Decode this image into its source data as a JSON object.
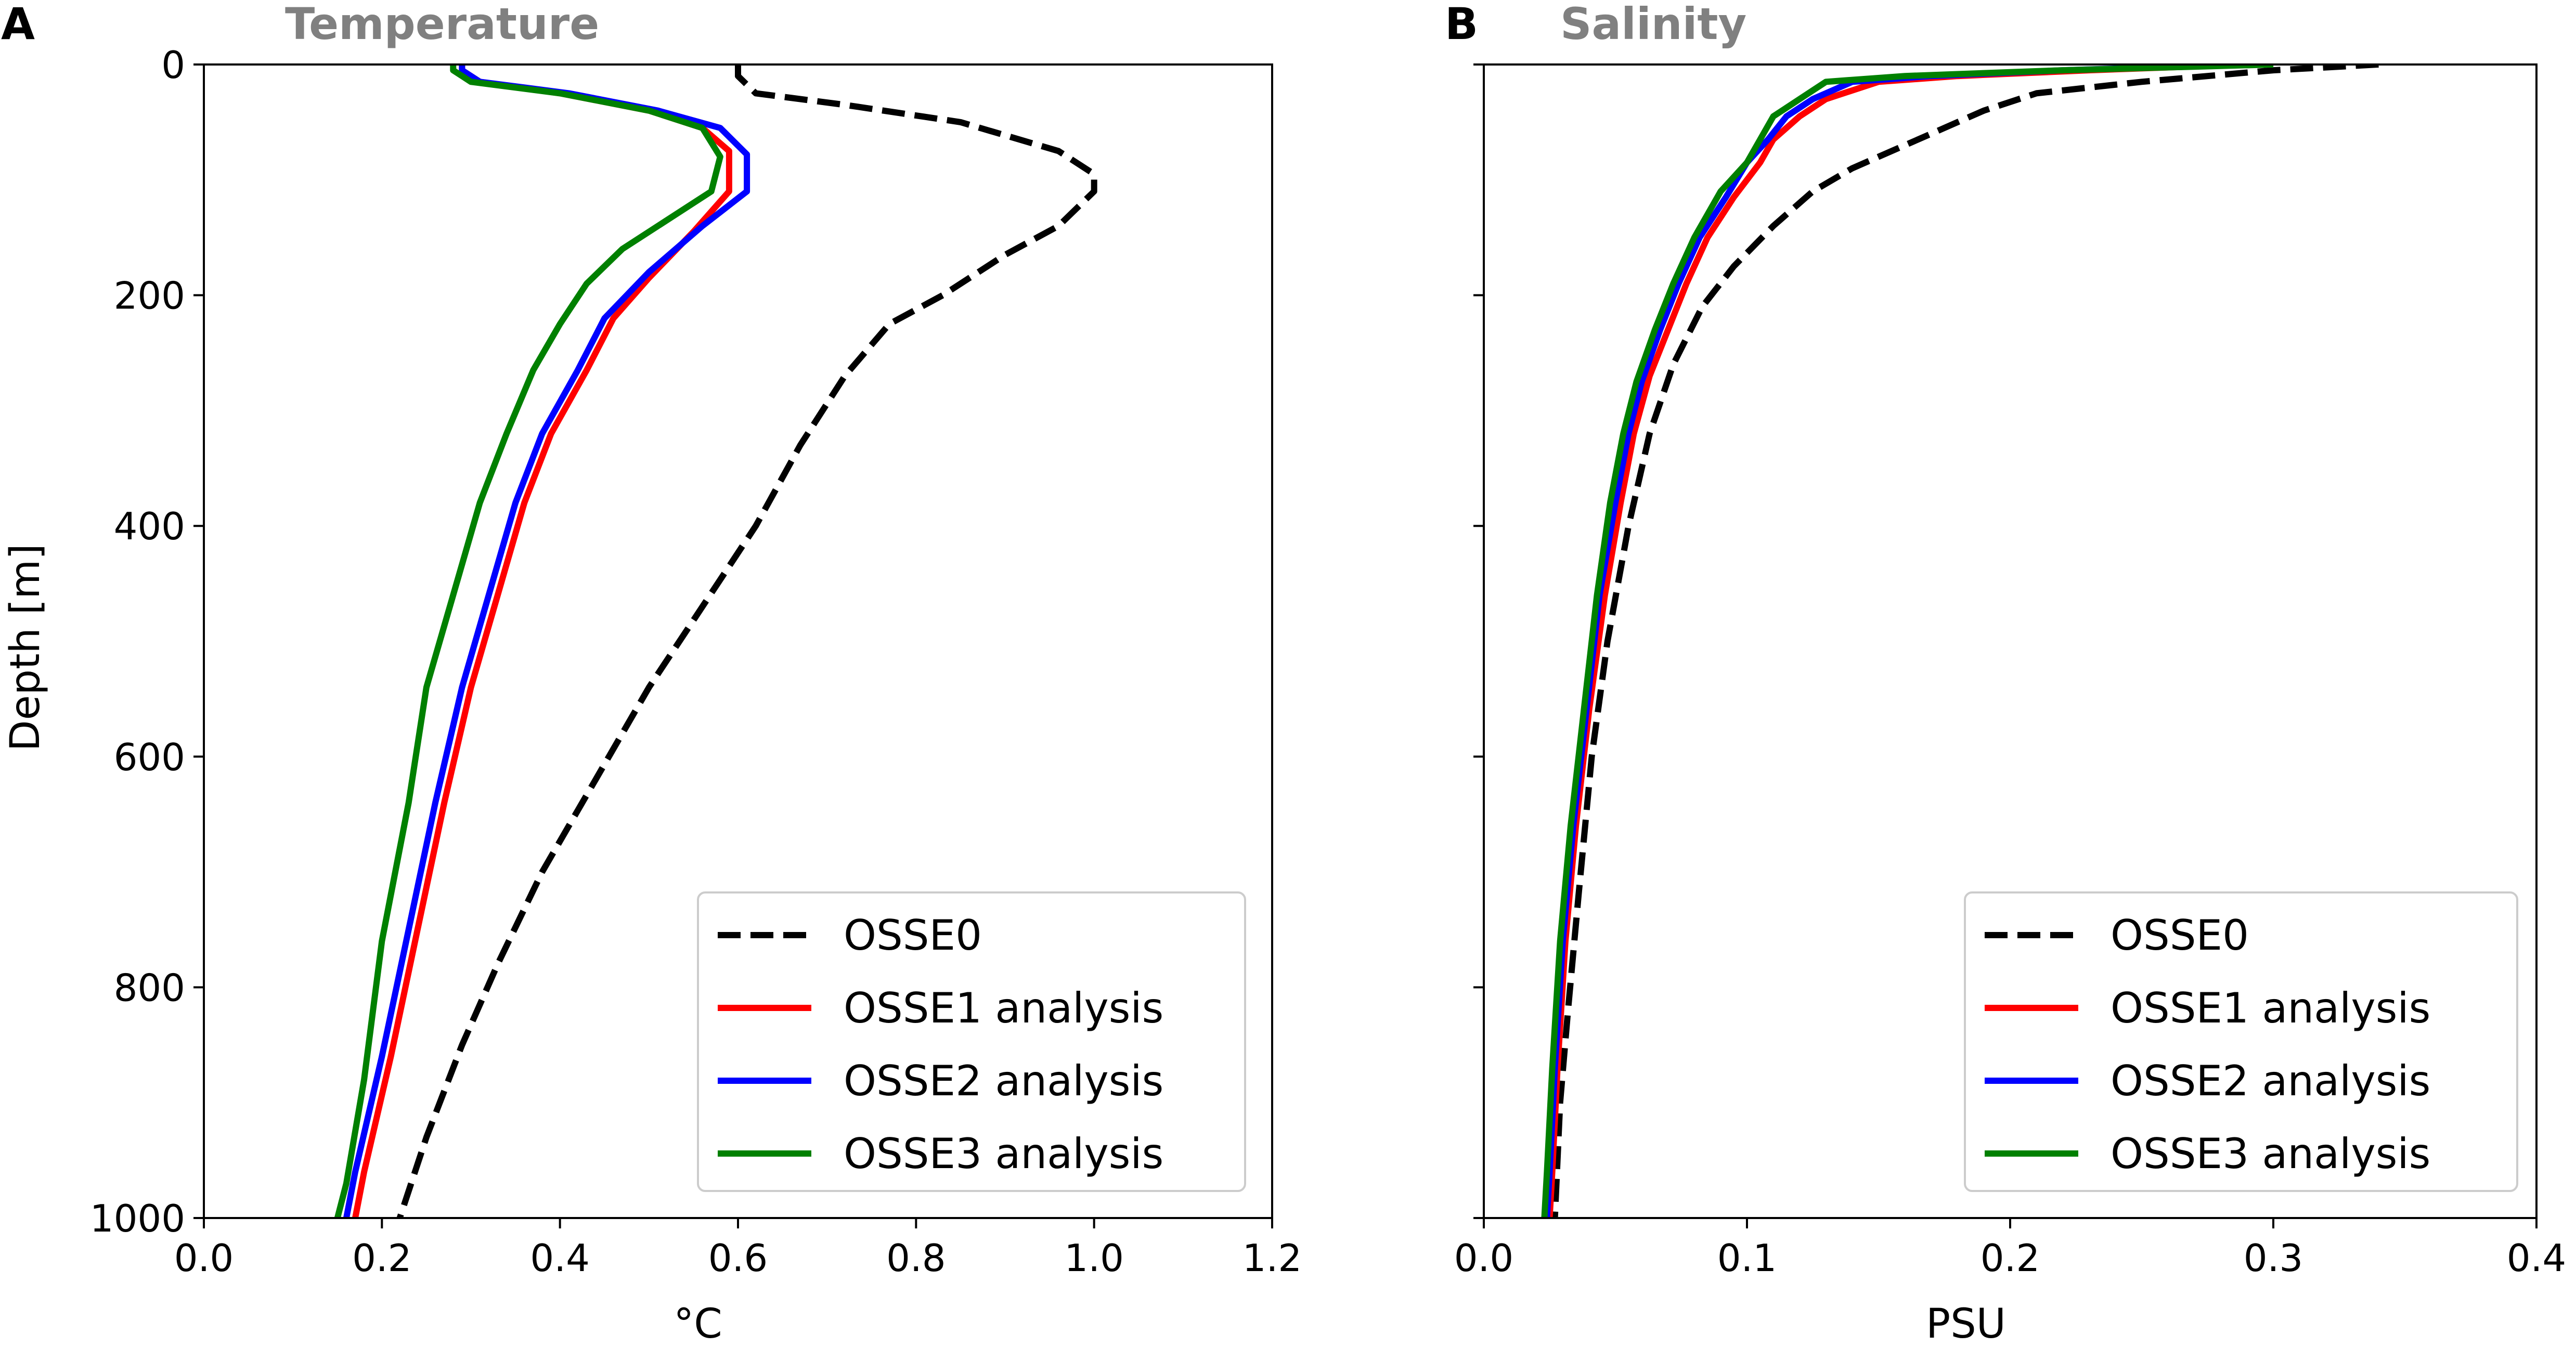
{
  "chart_data": [
    {
      "type": "line",
      "panel_label": "A",
      "title": "Temperature",
      "xlabel": "°C",
      "ylabel": "Depth [m]",
      "xlim": [
        0,
        1.2
      ],
      "ylim": [
        0,
        1000
      ],
      "y_inverted": true,
      "xticks": [
        "0.0",
        "0.2",
        "0.4",
        "0.6",
        "0.8",
        "1.0",
        "1.2"
      ],
      "yticks": [
        "0",
        "200",
        "400",
        "600",
        "800",
        "1000"
      ],
      "grid": false,
      "legend_position": "lower-right",
      "series": [
        {
          "name": "OSSE0",
          "color": "#000000",
          "dash": true,
          "points": [
            [
              0.6,
              0
            ],
            [
              0.6,
              10
            ],
            [
              0.62,
              25
            ],
            [
              0.72,
              35
            ],
            [
              0.85,
              50
            ],
            [
              0.96,
              75
            ],
            [
              1.0,
              95
            ],
            [
              1.0,
              110
            ],
            [
              0.96,
              140
            ],
            [
              0.9,
              165
            ],
            [
              0.83,
              200
            ],
            [
              0.77,
              225
            ],
            [
              0.72,
              270
            ],
            [
              0.67,
              330
            ],
            [
              0.62,
              400
            ],
            [
              0.56,
              470
            ],
            [
              0.5,
              540
            ],
            [
              0.44,
              620
            ],
            [
              0.38,
              700
            ],
            [
              0.33,
              780
            ],
            [
              0.29,
              850
            ],
            [
              0.25,
              930
            ],
            [
              0.22,
              1000
            ]
          ]
        },
        {
          "name": "OSSE1 analysis",
          "color": "#ff0000",
          "dash": false,
          "points": [
            [
              0.29,
              0
            ],
            [
              0.29,
              5
            ],
            [
              0.31,
              15
            ],
            [
              0.4,
              25
            ],
            [
              0.5,
              40
            ],
            [
              0.56,
              55
            ],
            [
              0.59,
              75
            ],
            [
              0.59,
              110
            ],
            [
              0.55,
              145
            ],
            [
              0.5,
              185
            ],
            [
              0.46,
              220
            ],
            [
              0.43,
              265
            ],
            [
              0.39,
              320
            ],
            [
              0.36,
              380
            ],
            [
              0.33,
              460
            ],
            [
              0.3,
              540
            ],
            [
              0.27,
              640
            ],
            [
              0.24,
              750
            ],
            [
              0.21,
              860
            ],
            [
              0.18,
              960
            ],
            [
              0.17,
              1000
            ]
          ]
        },
        {
          "name": "OSSE2 analysis",
          "color": "#0000ff",
          "dash": false,
          "points": [
            [
              0.29,
              0
            ],
            [
              0.29,
              5
            ],
            [
              0.31,
              15
            ],
            [
              0.41,
              25
            ],
            [
              0.51,
              40
            ],
            [
              0.58,
              55
            ],
            [
              0.61,
              78
            ],
            [
              0.61,
              110
            ],
            [
              0.56,
              140
            ],
            [
              0.5,
              180
            ],
            [
              0.45,
              220
            ],
            [
              0.42,
              265
            ],
            [
              0.38,
              320
            ],
            [
              0.35,
              380
            ],
            [
              0.32,
              460
            ],
            [
              0.29,
              540
            ],
            [
              0.26,
              640
            ],
            [
              0.23,
              750
            ],
            [
              0.2,
              860
            ],
            [
              0.17,
              960
            ],
            [
              0.16,
              1000
            ]
          ]
        },
        {
          "name": "OSSE3 analysis",
          "color": "#008000",
          "dash": false,
          "points": [
            [
              0.28,
              0
            ],
            [
              0.28,
              5
            ],
            [
              0.3,
              15
            ],
            [
              0.4,
              25
            ],
            [
              0.5,
              40
            ],
            [
              0.56,
              55
            ],
            [
              0.58,
              80
            ],
            [
              0.57,
              110
            ],
            [
              0.54,
              125
            ],
            [
              0.47,
              160
            ],
            [
              0.43,
              190
            ],
            [
              0.4,
              225
            ],
            [
              0.37,
              265
            ],
            [
              0.34,
              320
            ],
            [
              0.31,
              380
            ],
            [
              0.28,
              460
            ],
            [
              0.25,
              540
            ],
            [
              0.23,
              640
            ],
            [
              0.2,
              760
            ],
            [
              0.18,
              880
            ],
            [
              0.16,
              970
            ],
            [
              0.15,
              1000
            ]
          ]
        }
      ]
    },
    {
      "type": "line",
      "panel_label": "B",
      "title": "Salinity",
      "xlabel": "PSU",
      "ylabel": "",
      "xlim": [
        0,
        0.4
      ],
      "ylim": [
        0,
        1000
      ],
      "y_inverted": true,
      "xticks": [
        "0.0",
        "0.1",
        "0.2",
        "0.3",
        "0.4"
      ],
      "yticks": [],
      "grid": false,
      "legend_position": "lower-right",
      "series": [
        {
          "name": "OSSE0",
          "color": "#000000",
          "dash": true,
          "points": [
            [
              0.34,
              0
            ],
            [
              0.3,
              5
            ],
            [
              0.25,
              15
            ],
            [
              0.21,
              25
            ],
            [
              0.19,
              40
            ],
            [
              0.17,
              60
            ],
            [
              0.14,
              90
            ],
            [
              0.125,
              110
            ],
            [
              0.11,
              140
            ],
            [
              0.095,
              175
            ],
            [
              0.083,
              210
            ],
            [
              0.072,
              260
            ],
            [
              0.063,
              320
            ],
            [
              0.055,
              400
            ],
            [
              0.047,
              500
            ],
            [
              0.041,
              600
            ],
            [
              0.036,
              720
            ],
            [
              0.032,
              820
            ],
            [
              0.029,
              900
            ],
            [
              0.027,
              1000
            ]
          ]
        },
        {
          "name": "OSSE1 analysis",
          "color": "#ff0000",
          "dash": false,
          "points": [
            [
              0.29,
              0
            ],
            [
              0.23,
              5
            ],
            [
              0.18,
              10
            ],
            [
              0.15,
              15
            ],
            [
              0.13,
              30
            ],
            [
              0.12,
              45
            ],
            [
              0.11,
              65
            ],
            [
              0.105,
              85
            ],
            [
              0.095,
              115
            ],
            [
              0.085,
              150
            ],
            [
              0.077,
              190
            ],
            [
              0.07,
              230
            ],
            [
              0.063,
              270
            ],
            [
              0.057,
              320
            ],
            [
              0.052,
              380
            ],
            [
              0.046,
              460
            ],
            [
              0.04,
              560
            ],
            [
              0.035,
              660
            ],
            [
              0.031,
              760
            ],
            [
              0.028,
              870
            ],
            [
              0.026,
              960
            ],
            [
              0.025,
              1000
            ]
          ]
        },
        {
          "name": "OSSE2 analysis",
          "color": "#0000ff",
          "dash": false,
          "points": [
            [
              0.29,
              0
            ],
            [
              0.22,
              5
            ],
            [
              0.17,
              10
            ],
            [
              0.14,
              15
            ],
            [
              0.125,
              30
            ],
            [
              0.115,
              45
            ],
            [
              0.108,
              65
            ],
            [
              0.1,
              85
            ],
            [
              0.092,
              115
            ],
            [
              0.082,
              150
            ],
            [
              0.074,
              190
            ],
            [
              0.067,
              230
            ],
            [
              0.06,
              275
            ],
            [
              0.055,
              320
            ],
            [
              0.05,
              380
            ],
            [
              0.044,
              460
            ],
            [
              0.039,
              560
            ],
            [
              0.034,
              660
            ],
            [
              0.03,
              760
            ],
            [
              0.027,
              870
            ],
            [
              0.025,
              960
            ],
            [
              0.024,
              1000
            ]
          ]
        },
        {
          "name": "OSSE3 analysis",
          "color": "#008000",
          "dash": false,
          "points": [
            [
              0.3,
              0
            ],
            [
              0.22,
              5
            ],
            [
              0.16,
              10
            ],
            [
              0.13,
              15
            ],
            [
              0.12,
              30
            ],
            [
              0.11,
              45
            ],
            [
              0.105,
              65
            ],
            [
              0.1,
              85
            ],
            [
              0.09,
              110
            ],
            [
              0.08,
              150
            ],
            [
              0.072,
              190
            ],
            [
              0.065,
              230
            ],
            [
              0.058,
              275
            ],
            [
              0.053,
              320
            ],
            [
              0.048,
              380
            ],
            [
              0.043,
              460
            ],
            [
              0.038,
              560
            ],
            [
              0.033,
              660
            ],
            [
              0.029,
              760
            ],
            [
              0.026,
              870
            ],
            [
              0.024,
              960
            ],
            [
              0.023,
              1000
            ]
          ]
        }
      ]
    }
  ]
}
